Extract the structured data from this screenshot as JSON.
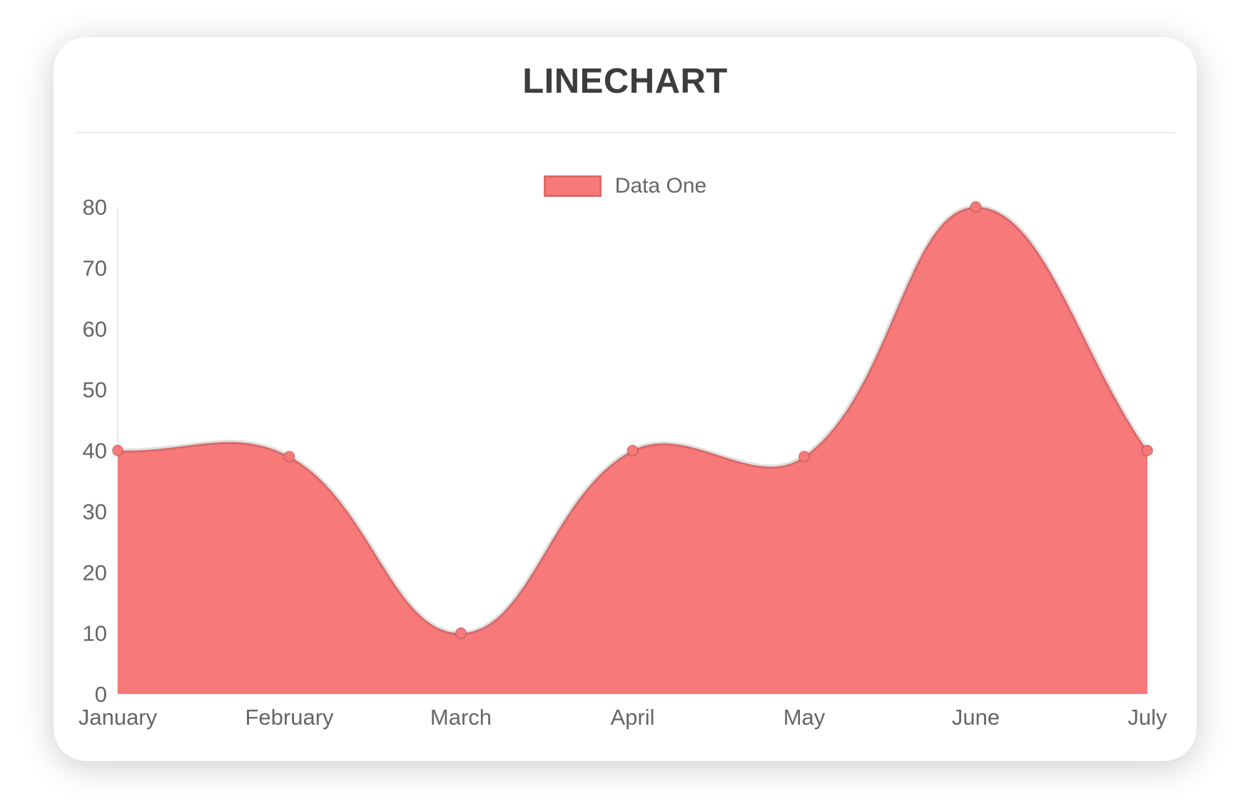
{
  "page": {
    "background": "#ffffff"
  },
  "card": {
    "background": "#ffffff",
    "divider_color": "#ededed"
  },
  "chart_data": {
    "type": "area",
    "title": "LINECHART",
    "title_color": "#3d3d3d",
    "categories": [
      "January",
      "February",
      "March",
      "April",
      "May",
      "June",
      "July"
    ],
    "series": [
      {
        "name": "Data One",
        "values": [
          40,
          39,
          10,
          40,
          39,
          80,
          40
        ],
        "fill_color": "#f87979",
        "line_color": "rgba(0,0,0,0.12)",
        "point_color": "#f87979",
        "point_border_color": "rgba(0,0,0,0.15)"
      }
    ],
    "xlabel": "",
    "ylabel": "",
    "ylim": [
      0,
      80
    ],
    "yticks": [
      0,
      10,
      20,
      30,
      40,
      50,
      60,
      70,
      80
    ],
    "smooth": true,
    "grid": "off",
    "axis_line_color": "rgba(0,0,0,0.09)",
    "tick_label_color": "#666666",
    "legend_position": "top-center"
  }
}
